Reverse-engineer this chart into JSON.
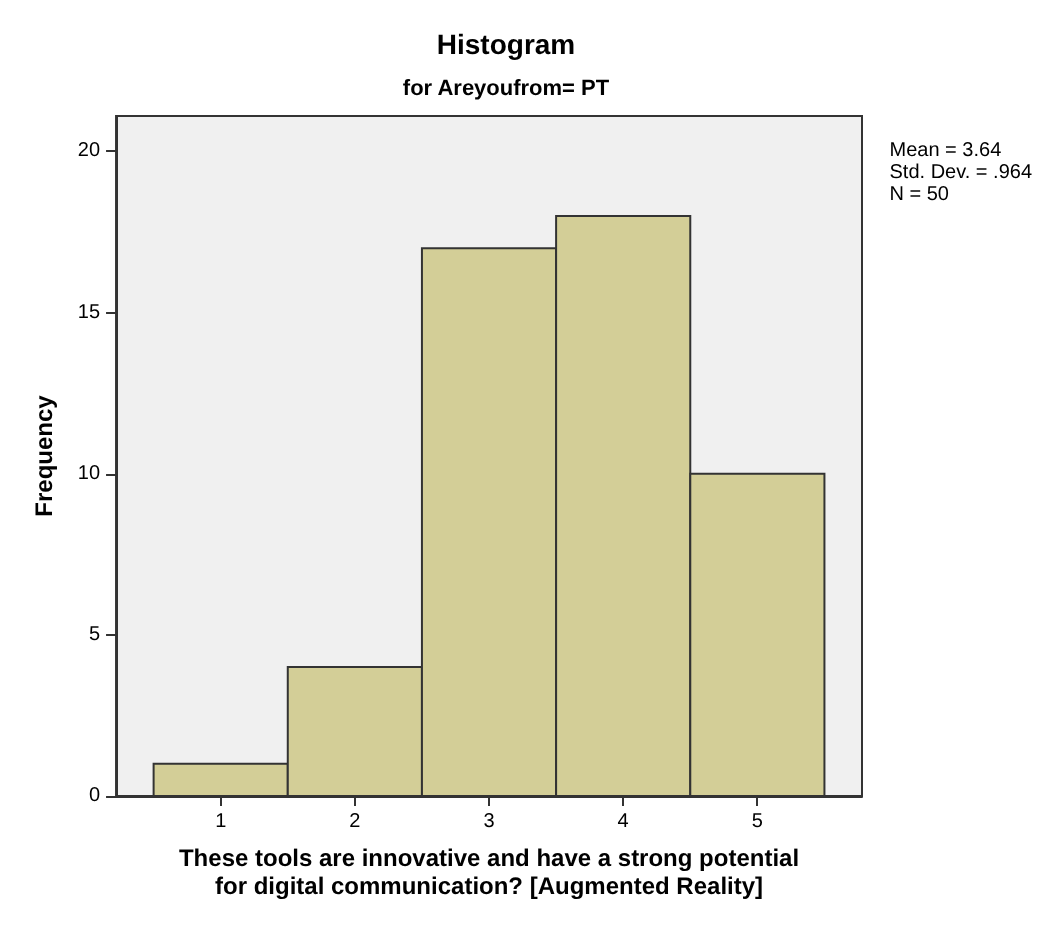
{
  "chart_data": {
    "type": "histogram",
    "title": "Histogram",
    "subtitle": "for Areyoufrom= PT",
    "xlabel": "These tools are innovative and have a strong potential\nfor digital communication? [Augmented Reality]",
    "ylabel": "Frequency",
    "bins": [
      0.5,
      1.5,
      2.5,
      3.5,
      4.5,
      5.5
    ],
    "values": [
      1,
      4,
      17,
      18,
      10
    ],
    "color": "#d3ce97",
    "xlim": [
      0.22,
      5.78
    ],
    "xticks": [
      1,
      2,
      3,
      4,
      5
    ],
    "ylim": [
      0,
      21.1
    ],
    "yticks": [
      0,
      5,
      10,
      15,
      20
    ],
    "grid": false,
    "annotations": [
      "Mean = 3.64\nStd. Dev. = .964\nN = 50"
    ]
  }
}
